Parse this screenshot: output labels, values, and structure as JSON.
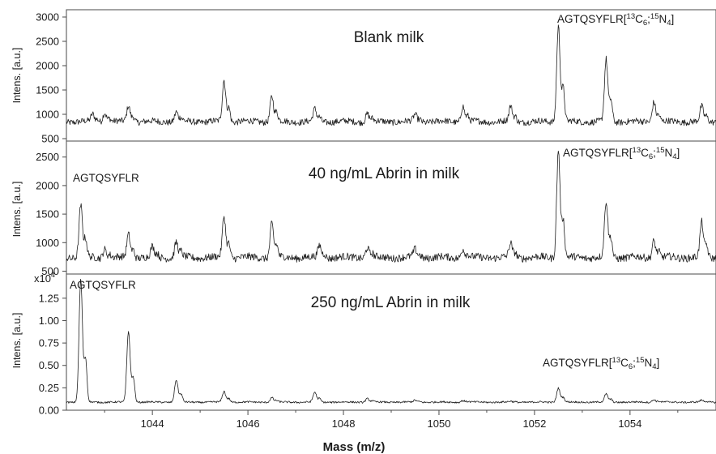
{
  "figure": {
    "xlabel": "Mass (m/z)",
    "ylabel": "Intens. [a.u.]"
  },
  "chart_data": [
    {
      "type": "line",
      "title": "Blank milk",
      "xlabel": "Mass (m/z)",
      "ylabel": "Intens. [a.u.]",
      "xlim": [
        1042.2,
        1055.8
      ],
      "ylim": [
        450,
        3150
      ],
      "y_ticks": [
        500,
        1000,
        1500,
        2000,
        2500,
        3000
      ],
      "y_multiplier": "",
      "baseline": 850,
      "noise": 65,
      "peaks": [
        {
          "x": 1042.75,
          "y": 1000
        },
        {
          "x": 1043.0,
          "y": 1050
        },
        {
          "x": 1043.5,
          "y": 1180
        },
        {
          "x": 1044.5,
          "y": 1050
        },
        {
          "x": 1045.5,
          "y": 1700
        },
        {
          "x": 1046.5,
          "y": 1380
        },
        {
          "x": 1047.4,
          "y": 1100
        },
        {
          "x": 1048.5,
          "y": 1020
        },
        {
          "x": 1049.5,
          "y": 990
        },
        {
          "x": 1050.5,
          "y": 1180
        },
        {
          "x": 1051.5,
          "y": 1160
        },
        {
          "x": 1052.5,
          "y": 2830
        },
        {
          "x": 1053.5,
          "y": 2120
        },
        {
          "x": 1054.5,
          "y": 1270
        },
        {
          "x": 1055.5,
          "y": 1150
        }
      ],
      "annotations": [
        {
          "label": "AGTQSYFLR",
          "isotope": [
            "13",
            "C",
            "6",
            ";",
            "15",
            "N",
            "4"
          ],
          "x": 1052.5
        }
      ]
    },
    {
      "type": "line",
      "title": "40 ng/mL Abrin in milk",
      "xlabel": "Mass (m/z)",
      "ylabel": "Intens. [a.u.]",
      "xlim": [
        1042.2,
        1055.8
      ],
      "ylim": [
        450,
        2780
      ],
      "y_ticks": [
        500,
        1000,
        1500,
        2000,
        2500
      ],
      "y_multiplier": "",
      "baseline": 740,
      "noise": 65,
      "peaks": [
        {
          "x": 1042.5,
          "y": 1650
        },
        {
          "x": 1043.0,
          "y": 900
        },
        {
          "x": 1043.5,
          "y": 1150
        },
        {
          "x": 1044.0,
          "y": 920
        },
        {
          "x": 1044.5,
          "y": 1010
        },
        {
          "x": 1045.5,
          "y": 1460
        },
        {
          "x": 1046.5,
          "y": 1340
        },
        {
          "x": 1047.5,
          "y": 950
        },
        {
          "x": 1048.5,
          "y": 920
        },
        {
          "x": 1049.5,
          "y": 880
        },
        {
          "x": 1050.5,
          "y": 900
        },
        {
          "x": 1051.5,
          "y": 980
        },
        {
          "x": 1052.5,
          "y": 2640
        },
        {
          "x": 1053.5,
          "y": 1720
        },
        {
          "x": 1054.5,
          "y": 1050
        },
        {
          "x": 1055.5,
          "y": 1350
        }
      ],
      "annotations": [
        {
          "label": "AGTQSYFLR",
          "isotope": [],
          "x": 1042.5
        },
        {
          "label": "AGTQSYFLR",
          "isotope": [
            "13",
            "C",
            "6",
            ";",
            "15",
            "N",
            "4"
          ],
          "x": 1052.5
        }
      ]
    },
    {
      "type": "line",
      "title": "250 ng/mL Abrin in milk",
      "xlabel": "Mass (m/z)",
      "ylabel": "Intens. [a.u.]",
      "xlim": [
        1042.2,
        1055.8
      ],
      "ylim": [
        0,
        1.52
      ],
      "y_ticks": [
        0.0,
        0.25,
        0.5,
        0.75,
        1.0,
        1.25
      ],
      "y_multiplier": "x10",
      "y_multiplier_exp": "4",
      "baseline": 0.09,
      "noise": 0.01,
      "peaks": [
        {
          "x": 1042.5,
          "y": 1.46
        },
        {
          "x": 1043.5,
          "y": 0.88
        },
        {
          "x": 1044.5,
          "y": 0.34
        },
        {
          "x": 1045.5,
          "y": 0.21
        },
        {
          "x": 1046.5,
          "y": 0.14
        },
        {
          "x": 1047.4,
          "y": 0.2
        },
        {
          "x": 1048.5,
          "y": 0.13
        },
        {
          "x": 1049.5,
          "y": 0.11
        },
        {
          "x": 1050.5,
          "y": 0.11
        },
        {
          "x": 1051.5,
          "y": 0.1
        },
        {
          "x": 1052.5,
          "y": 0.25
        },
        {
          "x": 1053.5,
          "y": 0.18
        },
        {
          "x": 1054.5,
          "y": 0.12
        },
        {
          "x": 1055.5,
          "y": 0.11
        }
      ],
      "annotations": [
        {
          "label": "AGTQSYFLR",
          "isotope": [],
          "x": 1042.5
        },
        {
          "label": "AGTQSYFLR",
          "isotope": [
            "13",
            "C",
            "6",
            ";",
            "15",
            "N",
            "4"
          ],
          "x": 1052.5
        }
      ]
    }
  ],
  "x_ticks": [
    1044,
    1046,
    1048,
    1050,
    1052,
    1054
  ]
}
